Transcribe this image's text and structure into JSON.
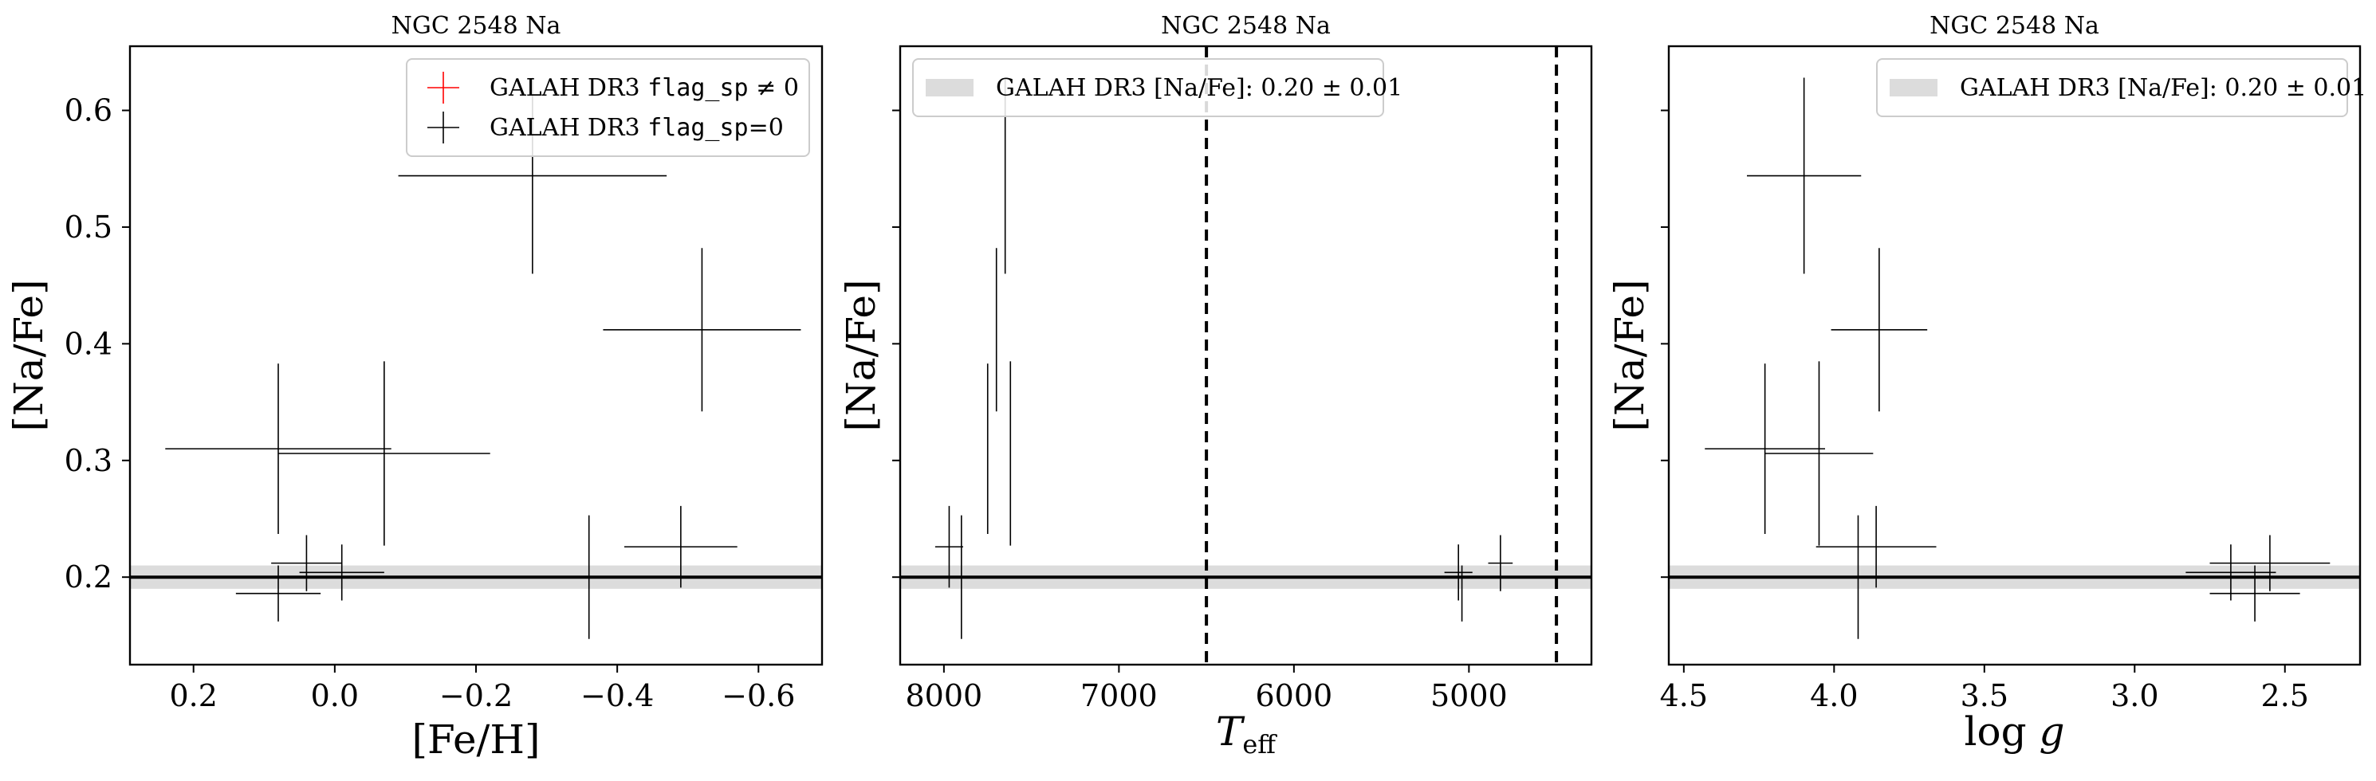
{
  "colors": {
    "band": "#dcdcdc",
    "flag_nonzero": "#ff0000",
    "flag_zero": "#000000",
    "reference_line": "#000000"
  },
  "chart_data": [
    {
      "type": "scatter",
      "title": "NGC 2548 Na",
      "xlabel": "[Fe/H]",
      "ylabel": "[Na/Fe]",
      "x_inverted": true,
      "xlim": [
        0.29,
        -0.69
      ],
      "ylim": [
        0.125,
        0.655
      ],
      "xticks": [
        0.2,
        0.0,
        -0.2,
        -0.4,
        -0.6
      ],
      "xtick_labels": [
        "0.2",
        "0.0",
        "−0.2",
        "−0.4",
        "−0.6"
      ],
      "yticks": [
        0.2,
        0.3,
        0.4,
        0.5,
        0.6
      ],
      "ytick_labels": [
        "0.2",
        "0.3",
        "0.4",
        "0.5",
        "0.6"
      ],
      "show_ytick_labels": true,
      "reference": {
        "value": 0.2,
        "error": 0.01
      },
      "legend": {
        "placement": "upper right",
        "entries": [
          {
            "kind": "cross",
            "color": "#ff0000",
            "text_parts": [
              "GALAH DR3 ",
              "flag_sp",
              " ≠ 0"
            ]
          },
          {
            "kind": "cross",
            "color": "#000000",
            "text_parts": [
              "GALAH DR3 ",
              "flag_sp",
              "=0"
            ]
          }
        ]
      },
      "vlines": [],
      "points": [
        {
          "x": 0.08,
          "y": 0.31,
          "xerr": 0.16,
          "yerr": 0.073,
          "flag": 0
        },
        {
          "x": 0.08,
          "y": 0.186,
          "xerr": 0.06,
          "yerr": 0.024,
          "flag": 0
        },
        {
          "x": 0.04,
          "y": 0.212,
          "xerr": 0.05,
          "yerr": 0.024,
          "flag": 0
        },
        {
          "x": -0.01,
          "y": 0.204,
          "xerr": 0.06,
          "yerr": 0.024,
          "flag": 0
        },
        {
          "x": -0.07,
          "y": 0.306,
          "xerr": 0.15,
          "yerr": 0.079,
          "flag": 0
        },
        {
          "x": -0.28,
          "y": 0.544,
          "xerr": 0.19,
          "yerr": 0.084,
          "flag": 0
        },
        {
          "x": -0.36,
          "y": 0.2,
          "xerr": 0.0,
          "yerr": 0.053,
          "flag": 0
        },
        {
          "x": -0.49,
          "y": 0.226,
          "xerr": 0.08,
          "yerr": 0.035,
          "flag": 0
        },
        {
          "x": -0.52,
          "y": 0.412,
          "xerr": 0.14,
          "yerr": 0.07,
          "flag": 0
        }
      ]
    },
    {
      "type": "scatter",
      "title": "NGC 2548 Na",
      "xlabel": "Teff",
      "ylabel": "[Na/Fe]",
      "x_inverted": true,
      "xlim": [
        8250,
        4300
      ],
      "ylim": [
        0.125,
        0.655
      ],
      "xticks": [
        8000,
        7000,
        6000,
        5000
      ],
      "xtick_labels": [
        "8000",
        "7000",
        "6000",
        "5000"
      ],
      "yticks": [
        0.2,
        0.3,
        0.4,
        0.5,
        0.6
      ],
      "ytick_labels": [
        "",
        "",
        "",
        "",
        ""
      ],
      "show_ytick_labels": false,
      "reference": {
        "value": 0.2,
        "error": 0.01
      },
      "legend": {
        "placement": "upper left",
        "entries": [
          {
            "kind": "band",
            "color": "#dcdcdc",
            "text_parts": [
              "GALAH DR3 [Na/Fe]: 0.20 ± 0.01"
            ]
          }
        ]
      },
      "vlines": [
        6500,
        4500
      ],
      "points": [
        {
          "x": 7970,
          "y": 0.226,
          "xerr": 80,
          "yerr": 0.035,
          "flag": 0
        },
        {
          "x": 7900,
          "y": 0.2,
          "xerr": 0,
          "yerr": 0.053,
          "flag": 0
        },
        {
          "x": 7750,
          "y": 0.31,
          "xerr": 0,
          "yerr": 0.073,
          "flag": 0
        },
        {
          "x": 7700,
          "y": 0.412,
          "xerr": 0,
          "yerr": 0.07,
          "flag": 0
        },
        {
          "x": 7650,
          "y": 0.544,
          "xerr": 0,
          "yerr": 0.084,
          "flag": 0
        },
        {
          "x": 7620,
          "y": 0.306,
          "xerr": 0,
          "yerr": 0.079,
          "flag": 0
        },
        {
          "x": 5060,
          "y": 0.204,
          "xerr": 80,
          "yerr": 0.024,
          "flag": 0
        },
        {
          "x": 5040,
          "y": 0.186,
          "xerr": 0,
          "yerr": 0.024,
          "flag": 0
        },
        {
          "x": 4820,
          "y": 0.212,
          "xerr": 70,
          "yerr": 0.024,
          "flag": 0
        }
      ]
    },
    {
      "type": "scatter",
      "title": "NGC 2548 Na",
      "xlabel": "log g",
      "ylabel": "[Na/Fe]",
      "x_inverted": true,
      "xlim": [
        4.55,
        2.25
      ],
      "ylim": [
        0.125,
        0.655
      ],
      "xticks": [
        4.5,
        4.0,
        3.5,
        3.0,
        2.5
      ],
      "xtick_labels": [
        "4.5",
        "4.0",
        "3.5",
        "3.0",
        "2.5"
      ],
      "yticks": [
        0.2,
        0.3,
        0.4,
        0.5,
        0.6
      ],
      "ytick_labels": [
        "",
        "",
        "",
        "",
        ""
      ],
      "show_ytick_labels": false,
      "reference": {
        "value": 0.2,
        "error": 0.01
      },
      "legend": {
        "placement": "upper right",
        "entries": [
          {
            "kind": "band",
            "color": "#dcdcdc",
            "text_parts": [
              "GALAH DR3 [Na/Fe]: 0.20 ± 0.01"
            ]
          }
        ]
      },
      "vlines": [],
      "points": [
        {
          "x": 4.23,
          "y": 0.31,
          "xerr": 0.2,
          "yerr": 0.073,
          "flag": 0
        },
        {
          "x": 4.05,
          "y": 0.306,
          "xerr": 0.18,
          "yerr": 0.079,
          "flag": 0
        },
        {
          "x": 4.1,
          "y": 0.544,
          "xerr": 0.19,
          "yerr": 0.084,
          "flag": 0
        },
        {
          "x": 3.85,
          "y": 0.412,
          "xerr": 0.16,
          "yerr": 0.07,
          "flag": 0
        },
        {
          "x": 3.86,
          "y": 0.226,
          "xerr": 0.2,
          "yerr": 0.035,
          "flag": 0
        },
        {
          "x": 3.92,
          "y": 0.2,
          "xerr": 0.0,
          "yerr": 0.053,
          "flag": 0
        },
        {
          "x": 2.68,
          "y": 0.204,
          "xerr": 0.15,
          "yerr": 0.024,
          "flag": 0
        },
        {
          "x": 2.6,
          "y": 0.186,
          "xerr": 0.15,
          "yerr": 0.024,
          "flag": 0
        },
        {
          "x": 2.55,
          "y": 0.212,
          "xerr": 0.2,
          "yerr": 0.024,
          "flag": 0
        }
      ]
    }
  ]
}
